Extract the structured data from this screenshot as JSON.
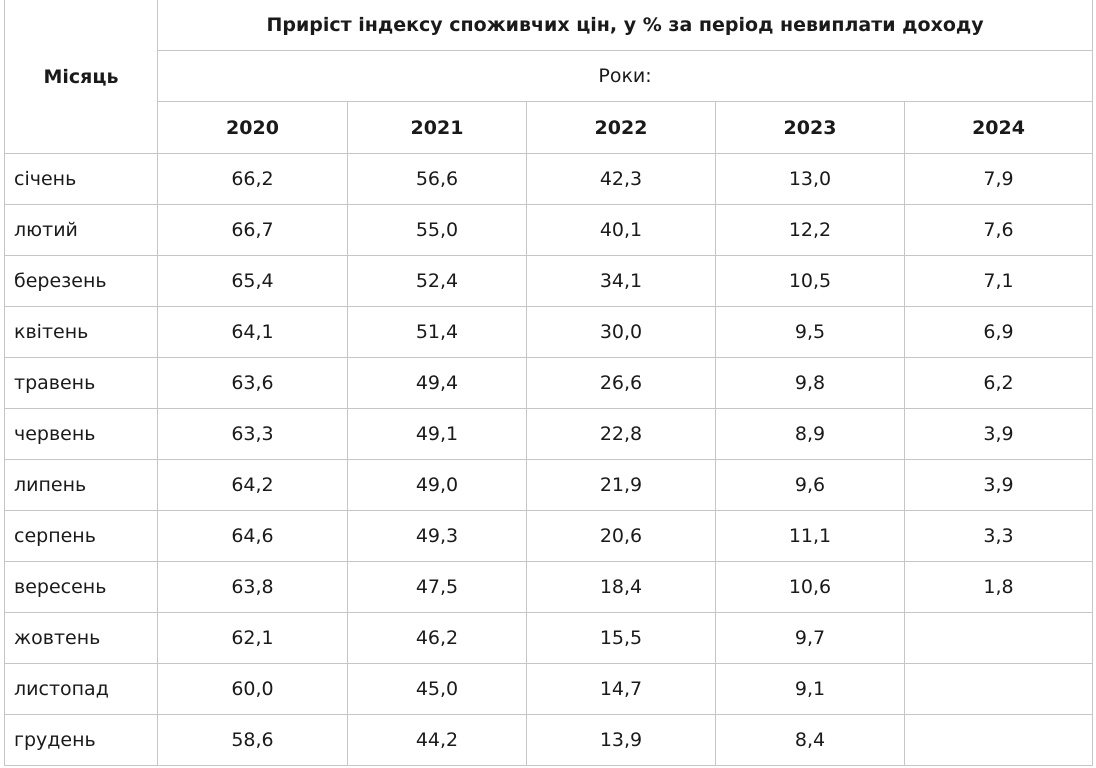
{
  "table": {
    "month_header": "Місяць",
    "title": "Приріст індексу споживчих цін, у % за період невиплати доходу",
    "years_label": "Роки:",
    "years": [
      "2020",
      "2021",
      "2022",
      "2023",
      "2024"
    ],
    "rows": [
      {
        "month": "січень",
        "values": [
          "66,2",
          "56,6",
          "42,3",
          "13,0",
          "7,9"
        ]
      },
      {
        "month": "лютий",
        "values": [
          "66,7",
          "55,0",
          "40,1",
          "12,2",
          "7,6"
        ]
      },
      {
        "month": "березень",
        "values": [
          "65,4",
          "52,4",
          "34,1",
          "10,5",
          "7,1"
        ]
      },
      {
        "month": "квітень",
        "values": [
          "64,1",
          "51,4",
          "30,0",
          "9,5",
          "6,9"
        ]
      },
      {
        "month": "травень",
        "values": [
          "63,6",
          "49,4",
          "26,6",
          "9,8",
          "6,2"
        ]
      },
      {
        "month": "червень",
        "values": [
          "63,3",
          "49,1",
          "22,8",
          "8,9",
          "3,9"
        ]
      },
      {
        "month": "липень",
        "values": [
          "64,2",
          "49,0",
          "21,9",
          "9,6",
          "3,9"
        ]
      },
      {
        "month": "серпень",
        "values": [
          "64,6",
          "49,3",
          "20,6",
          "11,1",
          "3,3"
        ]
      },
      {
        "month": "вересень",
        "values": [
          "63,8",
          "47,5",
          "18,4",
          "10,6",
          "1,8"
        ]
      },
      {
        "month": "жовтень",
        "values": [
          "62,1",
          "46,2",
          "15,5",
          "9,7",
          ""
        ]
      },
      {
        "month": "листопад",
        "values": [
          "60,0",
          "45,0",
          "14,7",
          "9,1",
          ""
        ]
      },
      {
        "month": "грудень",
        "values": [
          "58,6",
          "44,2",
          "13,9",
          "8,4",
          ""
        ]
      }
    ]
  }
}
